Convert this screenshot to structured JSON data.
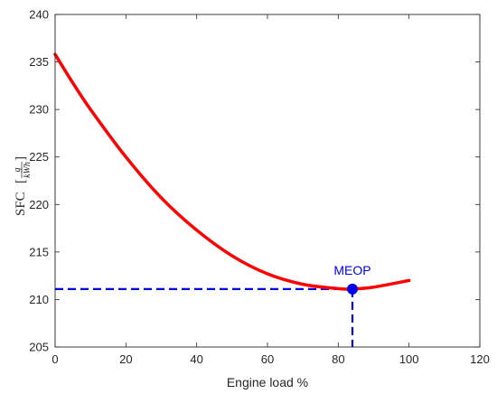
{
  "chart_data": {
    "type": "line",
    "xlabel": "Engine load %",
    "ylabel": {
      "prefix": "SFC",
      "numerator": "g",
      "denominator": "kWh"
    },
    "xlim": [
      0,
      120
    ],
    "ylim": [
      205,
      240
    ],
    "xticks": [
      0,
      20,
      40,
      60,
      80,
      100,
      120
    ],
    "yticks": [
      205,
      210,
      215,
      220,
      225,
      230,
      235,
      240
    ],
    "grid": false,
    "series": [
      {
        "color": "#ff0000",
        "x": [
          0,
          5,
          10,
          20,
          30,
          40,
          50,
          60,
          70,
          80,
          84,
          90,
          100
        ],
        "y": [
          235.8,
          232.8,
          230.0,
          225.0,
          220.7,
          217.3,
          214.6,
          212.7,
          211.6,
          211.15,
          211.1,
          211.3,
          212.0
        ]
      }
    ],
    "annotation": {
      "label": "MEOP",
      "x": 84,
      "y": 211.1,
      "color": "#0000e6"
    }
  }
}
